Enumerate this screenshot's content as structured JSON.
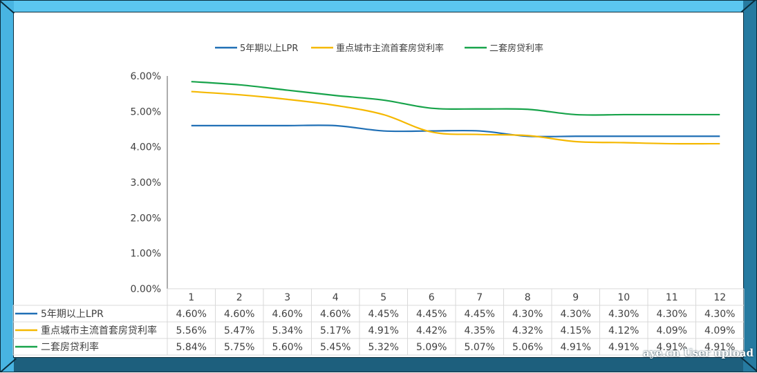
{
  "colors": {
    "series_lpr": "#1f6fb5",
    "series_first_home": "#f5b800",
    "series_second_home": "#17a34a",
    "frame_light": "#5bc6f0",
    "frame_dark": "#1d5f7d"
  },
  "watermark": "aye.cn User upload",
  "chart_data": {
    "type": "line",
    "title": "",
    "xlabel": "",
    "ylabel": "",
    "categories": [
      "1",
      "2",
      "3",
      "4",
      "5",
      "6",
      "7",
      "8",
      "9",
      "10",
      "11",
      "12"
    ],
    "y_ticks": [
      "0.00%",
      "1.00%",
      "2.00%",
      "3.00%",
      "4.00%",
      "5.00%",
      "6.00%"
    ],
    "ylim": [
      0,
      6
    ],
    "grid": false,
    "legend_position": "top",
    "data_table": true,
    "series": [
      {
        "name": "5年期以上LPR",
        "color_key": "series_lpr",
        "values": [
          4.6,
          4.6,
          4.6,
          4.6,
          4.45,
          4.45,
          4.45,
          4.3,
          4.3,
          4.3,
          4.3,
          4.3
        ],
        "labels": [
          "4.60%",
          "4.60%",
          "4.60%",
          "4.60%",
          "4.45%",
          "4.45%",
          "4.45%",
          "4.30%",
          "4.30%",
          "4.30%",
          "4.30%",
          "4.30%"
        ]
      },
      {
        "name": "重点城市主流首套房贷利率",
        "color_key": "series_first_home",
        "values": [
          5.56,
          5.47,
          5.34,
          5.17,
          4.91,
          4.42,
          4.35,
          4.32,
          4.15,
          4.12,
          4.09,
          4.09
        ],
        "labels": [
          "5.56%",
          "5.47%",
          "5.34%",
          "5.17%",
          "4.91%",
          "4.42%",
          "4.35%",
          "4.32%",
          "4.15%",
          "4.12%",
          "4.09%",
          "4.09%"
        ]
      },
      {
        "name": "二套房贷利率",
        "color_key": "series_second_home",
        "values": [
          5.84,
          5.75,
          5.6,
          5.45,
          5.32,
          5.09,
          5.07,
          5.06,
          4.91,
          4.91,
          4.91,
          4.91
        ],
        "labels": [
          "5.84%",
          "5.75%",
          "5.60%",
          "5.45%",
          "5.32%",
          "5.09%",
          "5.07%",
          "5.06%",
          "4.91%",
          "4.91%",
          "4.91%",
          "4.91%"
        ]
      }
    ]
  }
}
